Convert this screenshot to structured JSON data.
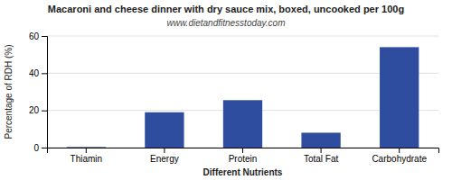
{
  "chart_data": {
    "type": "bar",
    "title": "Macaroni and cheese dinner with dry sauce mix, boxed, uncooked per 100g",
    "subtitle": "www.dietandfitnesstoday.com",
    "xlabel": "Different Nutrients",
    "ylabel": "Percentage of RDH (%)",
    "categories": [
      "Thiamin",
      "Energy",
      "Protein",
      "Total Fat",
      "Carbohydrate"
    ],
    "values": [
      0.3,
      19.0,
      25.5,
      8.0,
      54.0
    ],
    "color": "#2e4d9e",
    "ylim": [
      0,
      60
    ],
    "yticks": [
      0,
      20,
      40,
      60
    ],
    "grid": true
  }
}
